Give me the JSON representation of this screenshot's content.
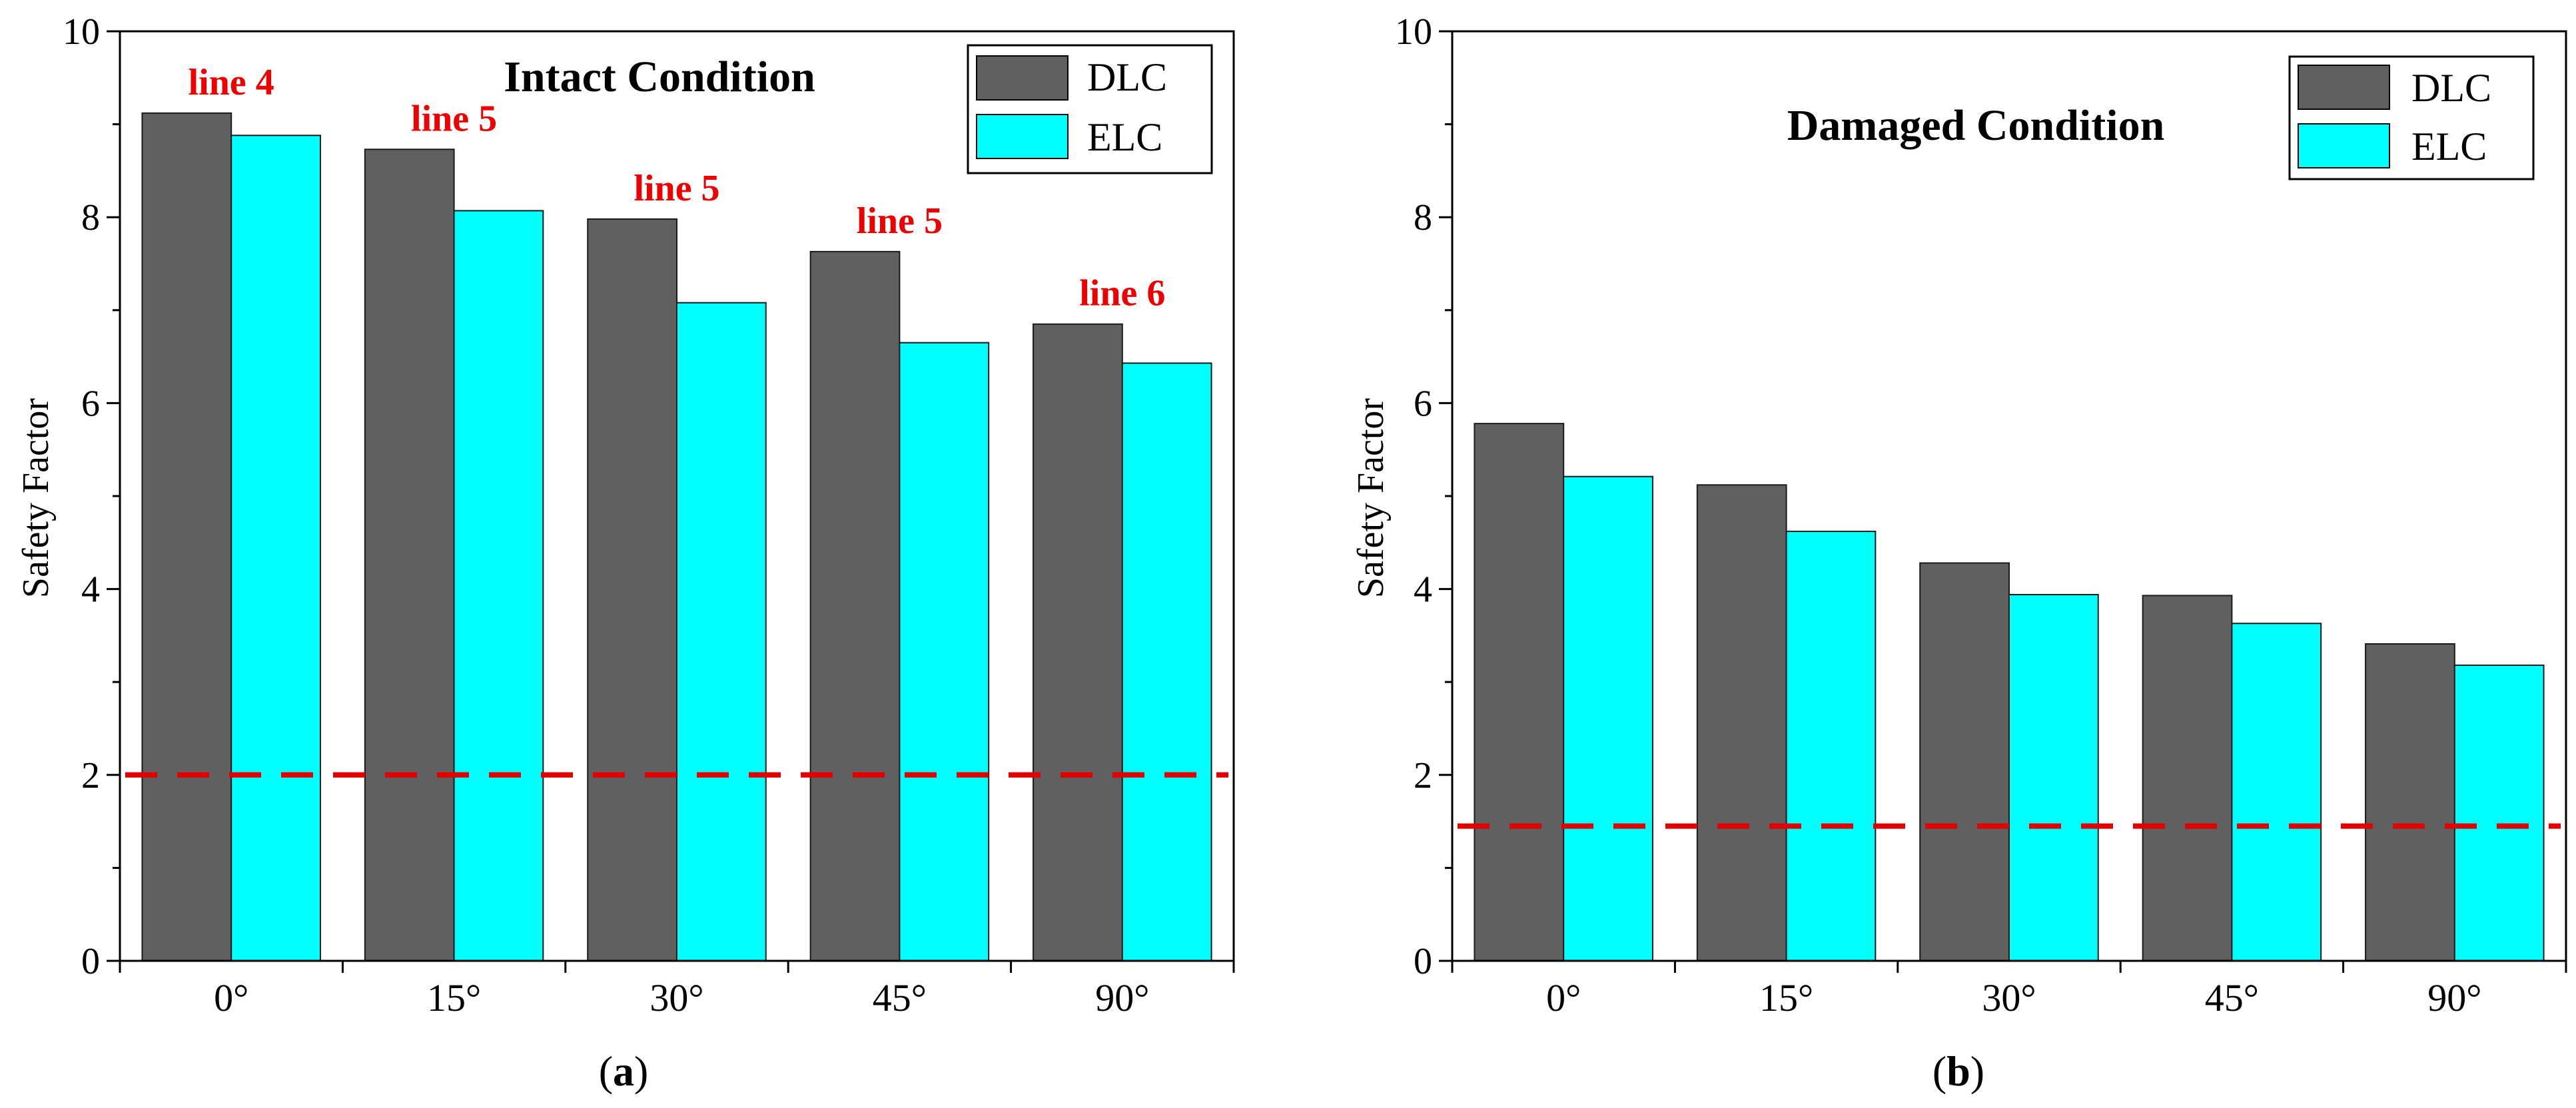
{
  "colors": {
    "dlc": "#606060",
    "elc": "#00ffff",
    "threshold": "#e00000",
    "annotation": "#ee0000",
    "axis": "#000000"
  },
  "chart_data": [
    {
      "type": "bar",
      "panel_label": "a",
      "title": "Intact Condition",
      "xlabel": "",
      "ylabel": "Safety Factor",
      "ylim": [
        0,
        10
      ],
      "yticks": [
        "0",
        "2",
        "4",
        "6",
        "8",
        "10"
      ],
      "categories": [
        "0°",
        "15°",
        "30°",
        "45°",
        "90°"
      ],
      "series": [
        {
          "name": "DLC",
          "values": [
            9.12,
            8.73,
            7.98,
            7.63,
            6.85
          ]
        },
        {
          "name": "ELC",
          "values": [
            8.88,
            8.07,
            7.08,
            6.65,
            6.43
          ]
        }
      ],
      "threshold": 2.0,
      "annotations": [
        "line 4",
        "line 5",
        "line 5",
        "line 5",
        "line 6"
      ],
      "legend": "top-right"
    },
    {
      "type": "bar",
      "panel_label": "b",
      "title": "Damaged Condition",
      "xlabel": "",
      "ylabel": "Safety Factor",
      "ylim": [
        0,
        10
      ],
      "yticks": [
        "0",
        "2",
        "4",
        "6",
        "8",
        "10"
      ],
      "categories": [
        "0°",
        "15°",
        "30°",
        "45°",
        "90°"
      ],
      "series": [
        {
          "name": "DLC",
          "values": [
            5.78,
            5.12,
            4.28,
            3.93,
            3.41
          ]
        },
        {
          "name": "ELC",
          "values": [
            5.21,
            4.62,
            3.94,
            3.63,
            3.18
          ]
        }
      ],
      "threshold": 1.45,
      "annotations": [],
      "legend": "top-right"
    }
  ]
}
